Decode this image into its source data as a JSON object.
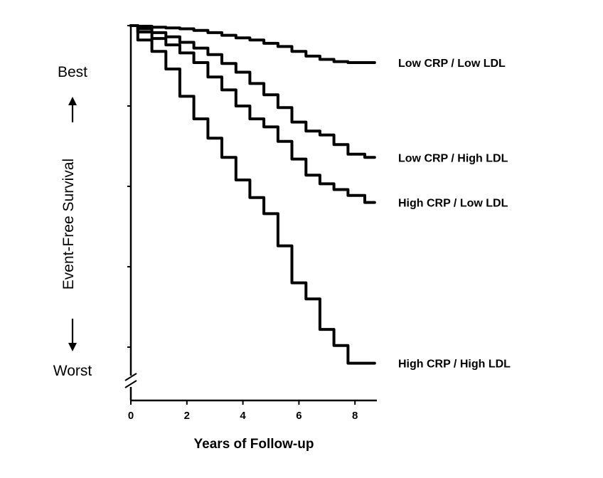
{
  "chart_data": {
    "type": "line",
    "title": "",
    "xlabel": "Years of Follow-up",
    "ylabel": "Event-Free Survival",
    "y_top_label": "Best",
    "y_bottom_label": "Worst",
    "xlim": [
      0,
      8.8
    ],
    "ylim": [
      0,
      1
    ],
    "x_ticks": [
      "0",
      "2",
      "4",
      "6",
      "8"
    ],
    "y_ticks_count": 5,
    "y_axis_break": true,
    "y_tick_labels_shown": false,
    "grid": false,
    "series": [
      {
        "name": "Low CRP / Low LDL",
        "x": [
          0,
          0.5,
          1,
          1.5,
          2,
          2.5,
          3,
          3.5,
          4,
          4.5,
          5,
          5.5,
          6,
          6.5,
          7,
          7.5,
          8,
          8.7
        ],
        "y": [
          1.0,
          0.998,
          0.995,
          0.993,
          0.99,
          0.985,
          0.978,
          0.97,
          0.962,
          0.955,
          0.945,
          0.935,
          0.92,
          0.905,
          0.895,
          0.888,
          0.885,
          0.885
        ]
      },
      {
        "name": "Low CRP / High LDL",
        "x": [
          0,
          0.5,
          1,
          1.5,
          2,
          2.5,
          3,
          3.5,
          4,
          4.5,
          5,
          5.5,
          6,
          6.5,
          7,
          7.5,
          8,
          8.7
        ],
        "y": [
          1.0,
          0.99,
          0.978,
          0.965,
          0.948,
          0.93,
          0.91,
          0.882,
          0.855,
          0.82,
          0.785,
          0.745,
          0.7,
          0.672,
          0.66,
          0.63,
          0.6,
          0.59
        ]
      },
      {
        "name": "High CRP / Low LDL",
        "x": [
          0,
          0.5,
          1,
          1.5,
          2,
          2.5,
          3,
          3.5,
          4,
          4.5,
          5,
          5.5,
          6,
          6.5,
          7,
          7.5,
          8,
          8.7
        ],
        "y": [
          1.0,
          0.98,
          0.96,
          0.94,
          0.915,
          0.885,
          0.84,
          0.8,
          0.75,
          0.71,
          0.685,
          0.64,
          0.585,
          0.535,
          0.508,
          0.49,
          0.472,
          0.45
        ]
      },
      {
        "name": "High CRP / High LDL",
        "x": [
          0,
          0.5,
          1,
          1.5,
          2,
          2.5,
          3,
          3.5,
          4,
          4.5,
          5,
          5.5,
          6,
          6.5,
          7,
          7.5,
          8,
          8.7
        ],
        "y": [
          1.0,
          0.955,
          0.92,
          0.865,
          0.78,
          0.71,
          0.65,
          0.59,
          0.52,
          0.465,
          0.415,
          0.315,
          0.2,
          0.15,
          0.055,
          0.005,
          -0.05,
          -0.05
        ]
      }
    ]
  }
}
